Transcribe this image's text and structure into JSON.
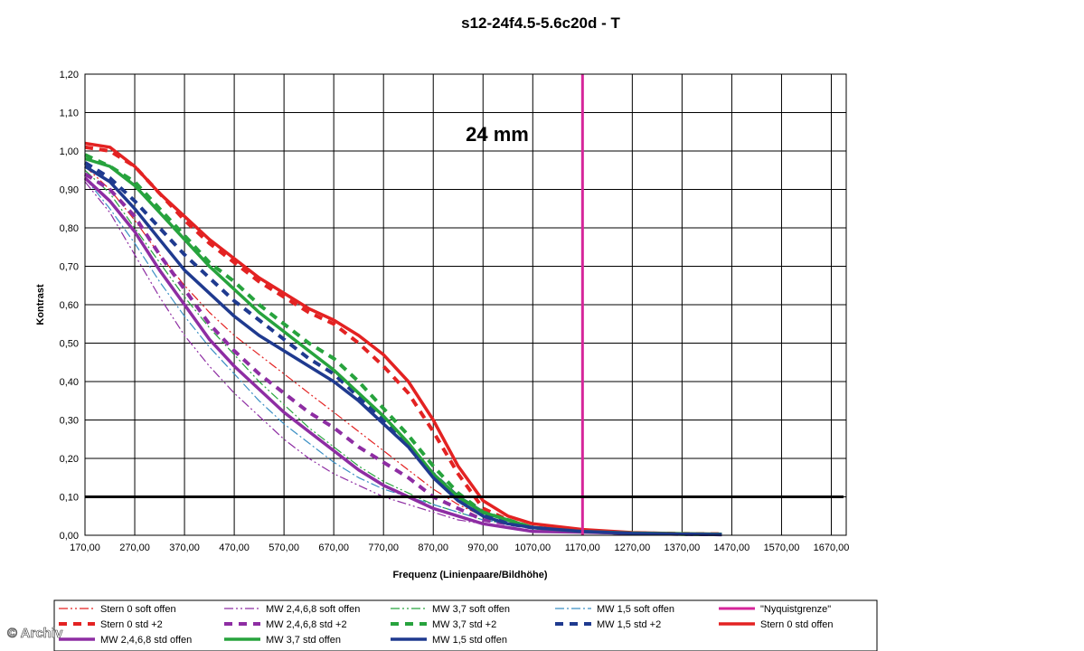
{
  "chart_data": {
    "type": "line",
    "title": "s12-24f4.5-5.6c20d - T",
    "xlabel": "Frequenz (Linienpaare/Bildhöhe)",
    "ylabel": "Kontrast",
    "xlim": [
      170,
      1700
    ],
    "ylim": [
      0,
      1.2
    ],
    "x_ticks": [
      "170,00",
      "270,00",
      "370,00",
      "470,00",
      "570,00",
      "670,00",
      "770,00",
      "870,00",
      "970,00",
      "1070,00",
      "1170,00",
      "1270,00",
      "1370,00",
      "1470,00",
      "1570,00",
      "1670,00"
    ],
    "y_ticks": [
      "0,00",
      "0,10",
      "0,20",
      "0,30",
      "0,40",
      "0,50",
      "0,60",
      "0,70",
      "0,80",
      "0,90",
      "1,00",
      "1,10",
      "1,20"
    ],
    "grid": true,
    "legend_position": "bottom",
    "annotation": "24 mm",
    "watermark": "© Archiv",
    "x": [
      170,
      220,
      270,
      320,
      370,
      420,
      470,
      520,
      570,
      620,
      670,
      720,
      770,
      820,
      870,
      920,
      970,
      1020,
      1070,
      1170,
      1270,
      1370,
      1450
    ],
    "reference_lines": [
      {
        "name": "\"Nyquistgrenze\"",
        "orientation": "vertical",
        "value": 1170,
        "color": "#d6259a"
      },
      {
        "orientation": "horizontal",
        "value": 0.1,
        "color": "#000000"
      }
    ],
    "series": [
      {
        "name": "Stern 0 soft offen",
        "color": "#e32222",
        "style": "dashdotdot",
        "width": 1.2,
        "values": [
          0.96,
          0.9,
          0.82,
          0.73,
          0.65,
          0.58,
          0.52,
          0.47,
          0.42,
          0.37,
          0.32,
          0.27,
          0.22,
          0.17,
          0.12,
          0.08,
          0.05,
          0.03,
          0.02,
          0.01,
          0.005,
          0.003,
          0.002
        ]
      },
      {
        "name": "MW 2,4,6,8 soft offen",
        "color": "#8e2da3",
        "style": "dashdotdot",
        "width": 1.2,
        "values": [
          0.92,
          0.84,
          0.73,
          0.62,
          0.52,
          0.44,
          0.37,
          0.31,
          0.25,
          0.2,
          0.16,
          0.13,
          0.1,
          0.08,
          0.06,
          0.04,
          0.03,
          0.02,
          0.01,
          0.008,
          0.005,
          0.003,
          0.002
        ]
      },
      {
        "name": "MW 3,7 soft offen",
        "color": "#27a33d",
        "style": "dashdotdot",
        "width": 1.2,
        "values": [
          0.95,
          0.89,
          0.8,
          0.71,
          0.62,
          0.54,
          0.47,
          0.4,
          0.34,
          0.28,
          0.23,
          0.18,
          0.14,
          0.11,
          0.08,
          0.06,
          0.04,
          0.03,
          0.02,
          0.01,
          0.005,
          0.003,
          0.002
        ]
      },
      {
        "name": "MW 1,5 soft offen",
        "color": "#3a8fc4",
        "style": "dashdot",
        "width": 1.2,
        "values": [
          0.93,
          0.85,
          0.76,
          0.66,
          0.57,
          0.49,
          0.42,
          0.35,
          0.29,
          0.24,
          0.19,
          0.15,
          0.12,
          0.1,
          0.08,
          0.06,
          0.04,
          0.03,
          0.02,
          0.01,
          0.005,
          0.003,
          0.002
        ]
      },
      {
        "name": "Stern 0 std +2",
        "color": "#e32222",
        "style": "dash",
        "width": 4,
        "values": [
          1.01,
          1.0,
          0.96,
          0.89,
          0.82,
          0.76,
          0.71,
          0.66,
          0.62,
          0.58,
          0.55,
          0.5,
          0.44,
          0.37,
          0.27,
          0.16,
          0.07,
          0.04,
          0.02,
          0.01,
          0.006,
          0.004,
          0.003
        ]
      },
      {
        "name": "MW 2,4,6,8 std +2",
        "color": "#8e2da3",
        "style": "dash",
        "width": 4,
        "values": [
          0.94,
          0.9,
          0.83,
          0.73,
          0.64,
          0.55,
          0.48,
          0.42,
          0.37,
          0.32,
          0.28,
          0.23,
          0.19,
          0.15,
          0.1,
          0.07,
          0.04,
          0.03,
          0.02,
          0.01,
          0.005,
          0.003,
          0.002
        ]
      },
      {
        "name": "MW 3,7 std +2",
        "color": "#27a33d",
        "style": "dash",
        "width": 4,
        "values": [
          0.99,
          0.96,
          0.92,
          0.85,
          0.78,
          0.71,
          0.66,
          0.6,
          0.55,
          0.5,
          0.46,
          0.4,
          0.33,
          0.26,
          0.18,
          0.11,
          0.06,
          0.04,
          0.02,
          0.01,
          0.005,
          0.003,
          0.002
        ]
      },
      {
        "name": "MW 1,5 std +2",
        "color": "#1f3a8f",
        "style": "dash",
        "width": 4,
        "values": [
          0.97,
          0.93,
          0.87,
          0.8,
          0.73,
          0.67,
          0.61,
          0.56,
          0.51,
          0.46,
          0.42,
          0.36,
          0.3,
          0.23,
          0.16,
          0.1,
          0.06,
          0.03,
          0.02,
          0.01,
          0.005,
          0.003,
          0.002
        ]
      },
      {
        "name": "Stern 0 std offen",
        "color": "#e32222",
        "style": "solid",
        "width": 3.5,
        "values": [
          1.02,
          1.01,
          0.96,
          0.89,
          0.83,
          0.77,
          0.72,
          0.67,
          0.63,
          0.59,
          0.56,
          0.52,
          0.47,
          0.4,
          0.3,
          0.18,
          0.09,
          0.05,
          0.03,
          0.015,
          0.007,
          0.004,
          0.003
        ]
      },
      {
        "name": "MW 2,4,6,8 std offen",
        "color": "#8e2da3",
        "style": "solid",
        "width": 3.5,
        "values": [
          0.93,
          0.87,
          0.79,
          0.69,
          0.6,
          0.51,
          0.44,
          0.38,
          0.32,
          0.27,
          0.22,
          0.17,
          0.13,
          0.1,
          0.07,
          0.05,
          0.03,
          0.02,
          0.01,
          0.008,
          0.005,
          0.003,
          0.002
        ]
      },
      {
        "name": "MW 3,7 std offen",
        "color": "#27a33d",
        "style": "solid",
        "width": 3.5,
        "values": [
          0.98,
          0.96,
          0.91,
          0.84,
          0.77,
          0.7,
          0.64,
          0.58,
          0.53,
          0.48,
          0.43,
          0.37,
          0.31,
          0.24,
          0.16,
          0.1,
          0.06,
          0.04,
          0.02,
          0.01,
          0.006,
          0.004,
          0.003
        ]
      },
      {
        "name": "MW 1,5 std offen",
        "color": "#1f3a8f",
        "style": "solid",
        "width": 3.5,
        "values": [
          0.96,
          0.92,
          0.85,
          0.77,
          0.69,
          0.63,
          0.57,
          0.52,
          0.48,
          0.44,
          0.4,
          0.35,
          0.29,
          0.23,
          0.15,
          0.09,
          0.05,
          0.03,
          0.02,
          0.01,
          0.005,
          0.003,
          0.002
        ]
      }
    ],
    "legend_order": [
      "Stern 0 soft offen",
      "MW 2,4,6,8 soft offen",
      "MW 3,7 soft offen",
      "MW 1,5 soft offen",
      "\"Nyquistgrenze\"",
      "Stern 0 std +2",
      "MW 2,4,6,8 std +2",
      "MW 3,7 std +2",
      "MW 1,5 std +2",
      "Stern 0 std offen",
      "MW 2,4,6,8 std offen",
      "MW 3,7 std offen",
      "MW 1,5 std offen"
    ]
  }
}
